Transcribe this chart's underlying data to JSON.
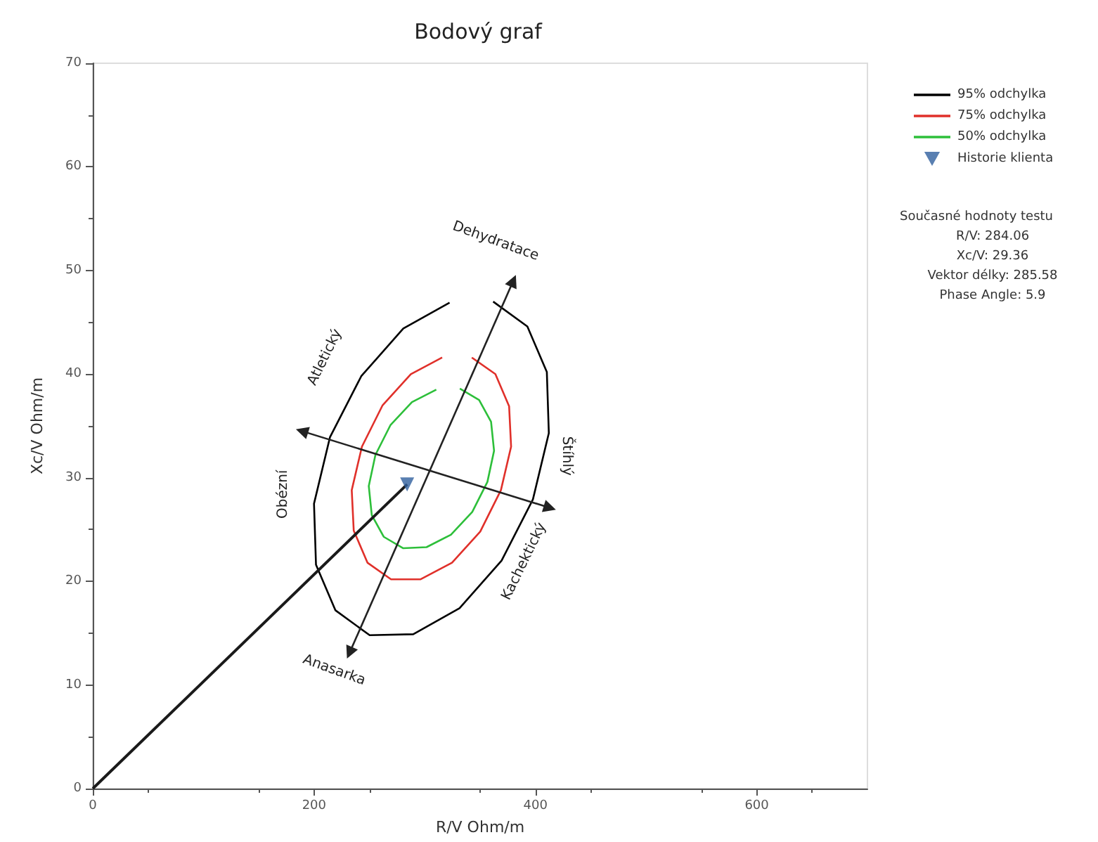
{
  "chart_data": {
    "type": "line",
    "title": "Bodový graf",
    "xlabel": "R/V Ohm/m",
    "ylabel": "Xc/V Ohm/m",
    "xlim": [
      0,
      700
    ],
    "xticks": [
      0,
      200,
      400,
      600
    ],
    "ylim": [
      0,
      70
    ],
    "yticks": [
      0,
      10,
      20,
      30,
      40,
      50,
      60,
      70
    ],
    "grid": false,
    "legend": "right",
    "line_style": "solid",
    "series": [
      {
        "name": "95% odchylka",
        "color": "#000000",
        "marker": "none",
        "x": [
          361.8,
          392.7,
          410.3,
          412.1,
          397.7,
          369.4,
          331.4,
          289.6,
          250.2,
          219.3,
          201.7,
          199.9,
          214.3,
          242.6,
          280.6,
          322.4
        ],
        "values": [
          47.0,
          44.6,
          40.2,
          34.3,
          27.9,
          22.0,
          17.4,
          14.9,
          14.8,
          17.2,
          21.6,
          27.5,
          33.9,
          39.8,
          44.4,
          46.9
        ]
      },
      {
        "name": "75% odchylka",
        "color": "#e0302a",
        "marker": "none",
        "x": [
          342.5,
          363.8,
          376.2,
          378.0,
          368.8,
          350.1,
          324.6,
          296.3,
          269.5,
          248.2,
          235.8,
          234.0,
          243.2,
          261.9,
          287.4,
          315.7
        ],
        "values": [
          41.6,
          40.0,
          36.9,
          33.0,
          28.8,
          24.8,
          21.8,
          20.2,
          20.2,
          21.8,
          24.9,
          28.8,
          33.0,
          37.0,
          40.0,
          41.6
        ]
      },
      {
        "name": "50% odchylka",
        "color": "#2dbf3a",
        "marker": "none",
        "x": [
          331.7,
          349.1,
          359.9,
          362.6,
          356.6,
          342.9,
          323.6,
          301.6,
          280.3,
          262.9,
          252.1,
          249.4,
          255.4,
          269.1,
          288.4,
          310.4
        ],
        "values": [
          38.6,
          37.5,
          35.4,
          32.6,
          29.6,
          26.7,
          24.5,
          23.3,
          23.2,
          24.3,
          26.4,
          29.2,
          32.2,
          35.1,
          37.3,
          38.5
        ]
      },
      {
        "color": "#1a1a1a",
        "marker": "none",
        "x": [
          0,
          284.06
        ],
        "values": [
          0,
          29.36
        ]
      },
      {
        "color": "#222222",
        "marker": "triangle",
        "x": [
          232,
          380
        ],
        "values": [
          13.1,
          49.0
        ]
      },
      {
        "color": "#222222",
        "marker": "triangle",
        "x": [
          189,
          413
        ],
        "values": [
          34.5,
          27.1
        ]
      },
      {
        "name": "Historie klienta",
        "type": "scatter",
        "color": "#2f5f9e",
        "marker": "triangle",
        "x": [
          284.06
        ],
        "values": [
          29.36
        ]
      }
    ],
    "annotations": [
      "Dehydratace",
      "Anasarka",
      "Atletický",
      "Obézní",
      "Štíhlý",
      "Kachektický",
      "Současné hodnoty testu",
      "R/V: 284.06",
      "Xc/V: 29.36",
      "Vektor délky: 285.58",
      "Phase Angle: 5.9"
    ]
  }
}
